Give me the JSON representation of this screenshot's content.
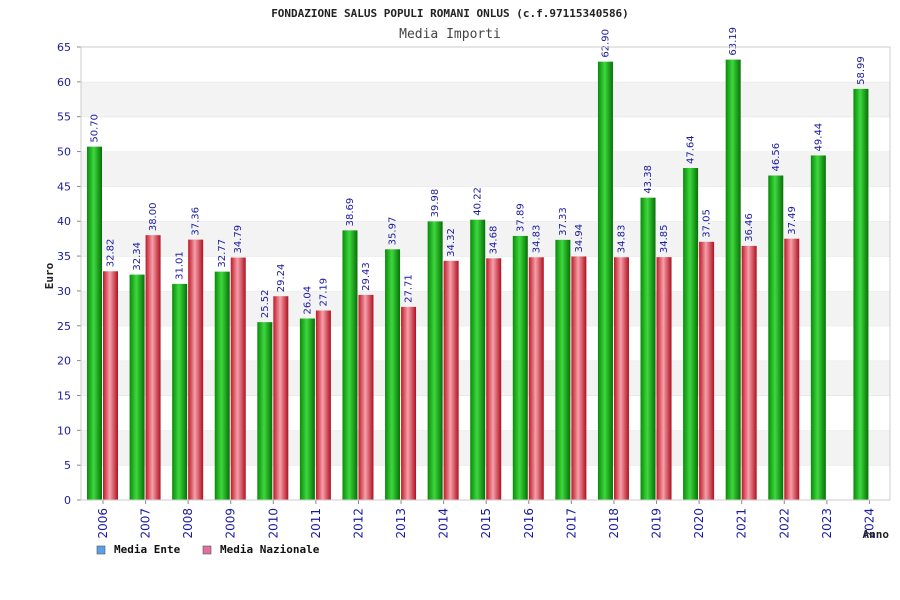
{
  "chart_data": {
    "type": "bar",
    "title": "FONDAZIONE SALUS POPULI ROMANI ONLUS (c.f.97115340586)",
    "subtitle": "Media Importi",
    "xlabel": "Anno",
    "ylabel": "Euro",
    "ylim": [
      0,
      65
    ],
    "yticks": [
      0,
      5,
      10,
      15,
      20,
      25,
      30,
      35,
      40,
      45,
      50,
      55,
      60,
      65
    ],
    "grid": true,
    "legend_position": "bottom-left",
    "categories": [
      "2006",
      "2007",
      "2008",
      "2009",
      "2010",
      "2011",
      "2012",
      "2013",
      "2014",
      "2015",
      "2016",
      "2017",
      "2018",
      "2019",
      "2020",
      "2021",
      "2022",
      "2023",
      "2024"
    ],
    "series": [
      {
        "name": "Media Ente",
        "color": "#0aa80a",
        "legend_color": "#5aa0e6",
        "values": [
          50.7,
          32.34,
          31.01,
          32.77,
          25.52,
          26.04,
          38.69,
          35.97,
          39.98,
          40.22,
          37.89,
          37.33,
          62.9,
          43.38,
          47.64,
          63.19,
          46.56,
          49.44,
          58.99
        ],
        "labels": [
          "50.70",
          "32.34",
          "31.01",
          "32.77",
          "25.52",
          "26.04",
          "38.69",
          "35.97",
          "39.98",
          "40.22",
          "37.89",
          "37.33",
          "62.90",
          "43.38",
          "47.64",
          "63.19",
          "46.56",
          "49.44",
          "58.99"
        ]
      },
      {
        "name": "Media Nazionale",
        "color": "#e03040",
        "legend_color": "#e070a0",
        "values": [
          32.82,
          38.0,
          37.36,
          34.79,
          29.24,
          27.19,
          29.43,
          27.71,
          34.32,
          34.68,
          34.83,
          34.94,
          34.83,
          34.85,
          37.05,
          36.46,
          37.49,
          null,
          null
        ],
        "labels": [
          "32.82",
          "38.00",
          "37.36",
          "34.79",
          "29.24",
          "27.19",
          "29.43",
          "27.71",
          "34.32",
          "34.68",
          "34.83",
          "34.94",
          "34.83",
          "34.85",
          "37.05",
          "36.46",
          "37.49",
          "",
          ""
        ]
      }
    ]
  }
}
